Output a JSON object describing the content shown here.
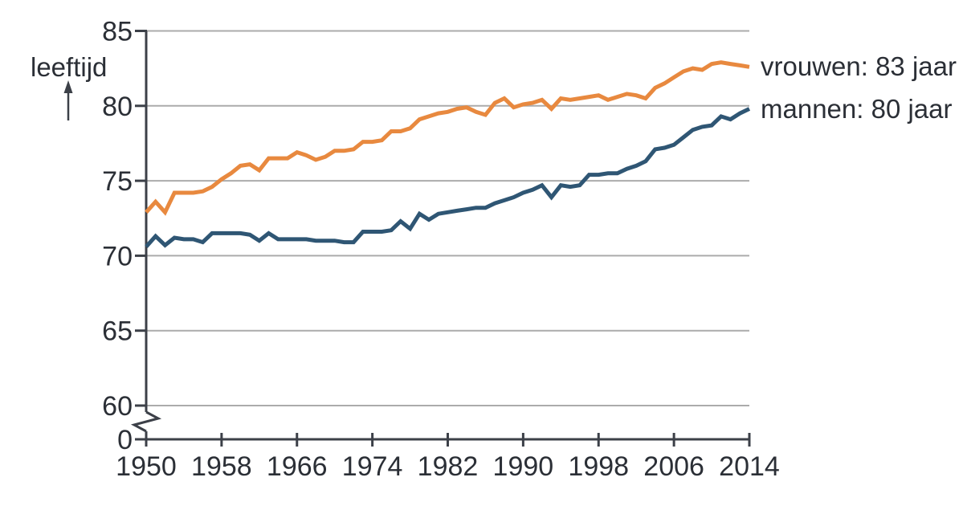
{
  "chart_data": {
    "type": "line",
    "title": "",
    "ylabel": "leeftijd",
    "xlabel": "",
    "grid": "horizontal",
    "legend_position": "right-of-line-end",
    "y_axis_break": true,
    "ylim_display": [
      60,
      85
    ],
    "y_ticks": [
      0,
      60,
      65,
      70,
      75,
      80,
      85
    ],
    "x_ticks": [
      1950,
      1958,
      1966,
      1974,
      1982,
      1990,
      1998,
      2006,
      2014
    ],
    "x_range": [
      1950,
      2014
    ],
    "x": [
      1950,
      1951,
      1952,
      1953,
      1954,
      1955,
      1956,
      1957,
      1958,
      1959,
      1960,
      1961,
      1962,
      1963,
      1964,
      1965,
      1966,
      1967,
      1968,
      1969,
      1970,
      1971,
      1972,
      1973,
      1974,
      1975,
      1976,
      1977,
      1978,
      1979,
      1980,
      1981,
      1982,
      1983,
      1984,
      1985,
      1986,
      1987,
      1988,
      1989,
      1990,
      1991,
      1992,
      1993,
      1994,
      1995,
      1996,
      1997,
      1998,
      1999,
      2000,
      2001,
      2002,
      2003,
      2004,
      2005,
      2006,
      2007,
      2008,
      2009,
      2010,
      2011,
      2012,
      2013,
      2014
    ],
    "series": [
      {
        "name": "vrouwen",
        "label": "vrouwen: 83 jaar",
        "color": "#e8893f",
        "values": [
          72.9,
          73.6,
          72.9,
          74.2,
          74.2,
          74.2,
          74.3,
          74.6,
          75.1,
          75.5,
          76.0,
          76.1,
          75.7,
          76.5,
          76.5,
          76.5,
          76.9,
          76.7,
          76.4,
          76.6,
          77.0,
          77.0,
          77.1,
          77.6,
          77.6,
          77.7,
          78.3,
          78.3,
          78.5,
          79.1,
          79.3,
          79.5,
          79.6,
          79.8,
          79.9,
          79.6,
          79.4,
          80.2,
          80.5,
          79.9,
          80.1,
          80.2,
          80.4,
          79.8,
          80.5,
          80.4,
          80.5,
          80.6,
          80.7,
          80.4,
          80.6,
          80.8,
          80.7,
          80.5,
          81.2,
          81.5,
          81.9,
          82.3,
          82.5,
          82.4,
          82.8,
          82.9,
          82.8,
          82.7,
          82.6
        ]
      },
      {
        "name": "mannen",
        "label": "mannen: 80 jaar",
        "color": "#2f5674",
        "values": [
          70.6,
          71.3,
          70.7,
          71.2,
          71.1,
          71.1,
          70.9,
          71.5,
          71.5,
          71.5,
          71.5,
          71.4,
          71.0,
          71.5,
          71.1,
          71.1,
          71.1,
          71.1,
          71.0,
          71.0,
          71.0,
          70.9,
          70.9,
          71.6,
          71.6,
          71.6,
          71.7,
          72.3,
          71.8,
          72.8,
          72.4,
          72.8,
          72.9,
          73.0,
          73.1,
          73.2,
          73.2,
          73.5,
          73.7,
          73.9,
          74.2,
          74.4,
          74.7,
          73.9,
          74.7,
          74.6,
          74.7,
          75.4,
          75.4,
          75.5,
          75.5,
          75.8,
          76.0,
          76.3,
          77.1,
          77.2,
          77.4,
          77.9,
          78.4,
          78.6,
          78.7,
          79.3,
          79.1,
          79.5,
          79.8
        ]
      }
    ]
  },
  "colors": {
    "background": "#ffffff",
    "grid": "#ababab",
    "axis": "#3c4048",
    "text": "#2b2f36"
  }
}
